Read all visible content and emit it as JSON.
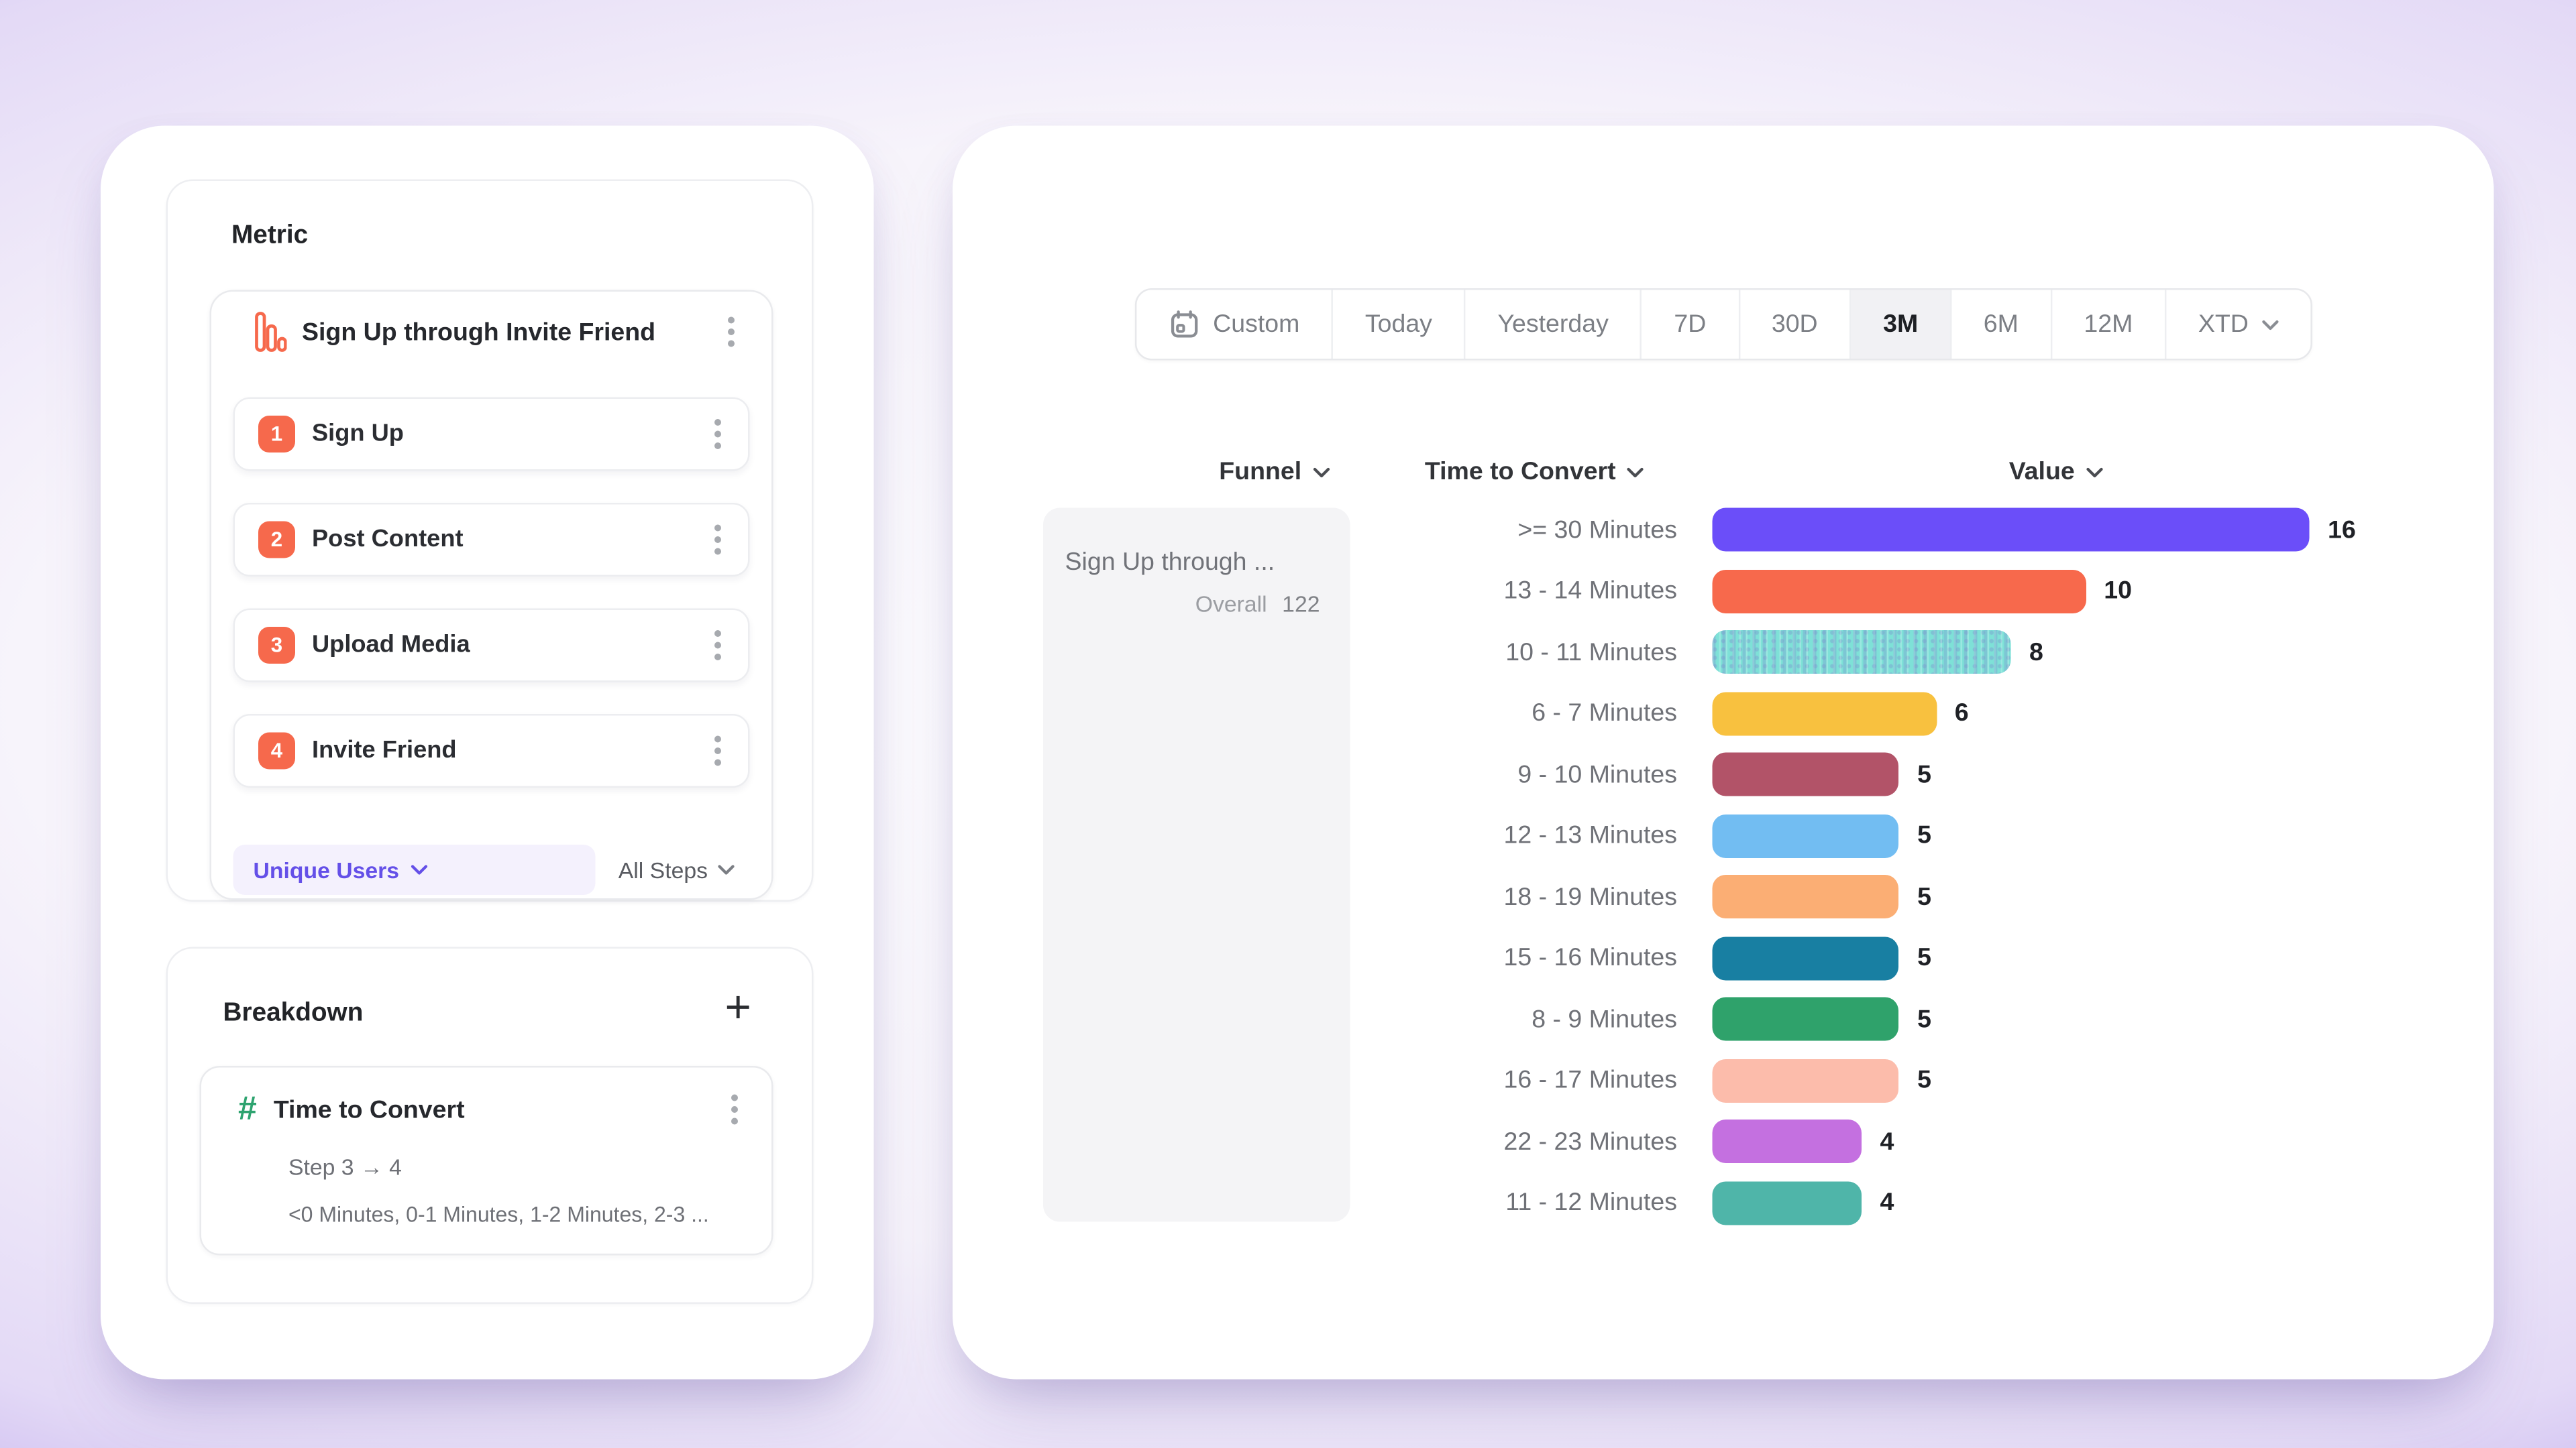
{
  "colors": {
    "accent_orange": "#F6694C",
    "accent_purple": "#6450E8",
    "accent_green": "#2DA36F",
    "pill_background": "#F4F1FD",
    "selected_segment_background": "#F1F1F4",
    "funnel_panel_background": "#F4F4F6"
  },
  "left_panel": {
    "metric_section": {
      "title": "Metric",
      "metric": {
        "name": "Sign Up through Invite Friend",
        "icon": "bar-chart-icon",
        "steps": [
          {
            "index": "1",
            "label": "Sign Up"
          },
          {
            "index": "2",
            "label": "Post Content"
          },
          {
            "index": "3",
            "label": "Upload Media"
          },
          {
            "index": "4",
            "label": "Invite Friend"
          }
        ],
        "counting": "Unique Users",
        "scope": "All Steps"
      }
    },
    "breakdown_section": {
      "title": "Breakdown",
      "add_label": "+",
      "item": {
        "icon": "hash-icon",
        "name": "Time to Convert",
        "step_range": "Step 3 → 4",
        "buckets_preview": "<0 Minutes, 0-1 Minutes, 1-2 Minutes, 2-3 ..."
      }
    }
  },
  "right_panel": {
    "date_range": {
      "selected": "3M",
      "options": [
        {
          "label": "Custom",
          "icon": "calendar"
        },
        {
          "label": "Today"
        },
        {
          "label": "Yesterday"
        },
        {
          "label": "7D"
        },
        {
          "label": "30D"
        },
        {
          "label": "3M",
          "selected": true
        },
        {
          "label": "6M"
        },
        {
          "label": "12M"
        },
        {
          "label": "XTD",
          "chevron": true
        }
      ]
    },
    "columns": {
      "funnel": "Funnel",
      "time_to_convert": "Time to Convert",
      "value": "Value"
    },
    "funnel_card": {
      "title": "Sign Up through ...",
      "overall_label": "Overall",
      "overall_value": "122"
    }
  },
  "chart_data": {
    "type": "bar",
    "orientation": "horizontal",
    "title": "Time to Convert distribution (Step 3 → 4)",
    "xlabel": "Value",
    "ylabel": "Time to Convert bucket",
    "value_axis_max": 16,
    "grid": false,
    "categories": [
      ">= 30 Minutes",
      "13 - 14 Minutes",
      "10 - 11 Minutes",
      "6 - 7 Minutes",
      "9 - 10 Minutes",
      "12 - 13 Minutes",
      "18 - 19 Minutes",
      "15 - 16 Minutes",
      "8 - 9 Minutes",
      "16 - 17 Minutes",
      "22 - 23 Minutes",
      "11 - 12 Minutes"
    ],
    "values": [
      16,
      10,
      8,
      6,
      5,
      5,
      5,
      5,
      5,
      5,
      4,
      4
    ],
    "bars": [
      {
        "label": ">= 30 Minutes",
        "value": 16,
        "color": "#6B4EF9",
        "patterned": false
      },
      {
        "label": "13 - 14 Minutes",
        "value": 10,
        "color": "#F7694C",
        "patterned": false
      },
      {
        "label": "10 - 11 Minutes",
        "value": 8,
        "color": "#7EE1D7",
        "patterned": true
      },
      {
        "label": "6 - 7 Minutes",
        "value": 6,
        "color": "#F8C13F",
        "patterned": false
      },
      {
        "label": "9 - 10 Minutes",
        "value": 5,
        "color": "#B25368",
        "patterned": false
      },
      {
        "label": "12 - 13 Minutes",
        "value": 5,
        "color": "#72BDF2",
        "patterned": false
      },
      {
        "label": "18 - 19 Minutes",
        "value": 5,
        "color": "#FBAE74",
        "patterned": false
      },
      {
        "label": "15 - 16 Minutes",
        "value": 5,
        "color": "#187FA2",
        "patterned": false
      },
      {
        "label": "8 - 9 Minutes",
        "value": 5,
        "color": "#2FA26B",
        "patterned": false
      },
      {
        "label": "16 - 17 Minutes",
        "value": 5,
        "color": "#FCBCAB",
        "patterned": false
      },
      {
        "label": "22 - 23 Minutes",
        "value": 4,
        "color": "#C470E0",
        "patterned": false
      },
      {
        "label": "11 - 12 Minutes",
        "value": 4,
        "color": "#4FB5A9",
        "patterned": false
      }
    ]
  }
}
